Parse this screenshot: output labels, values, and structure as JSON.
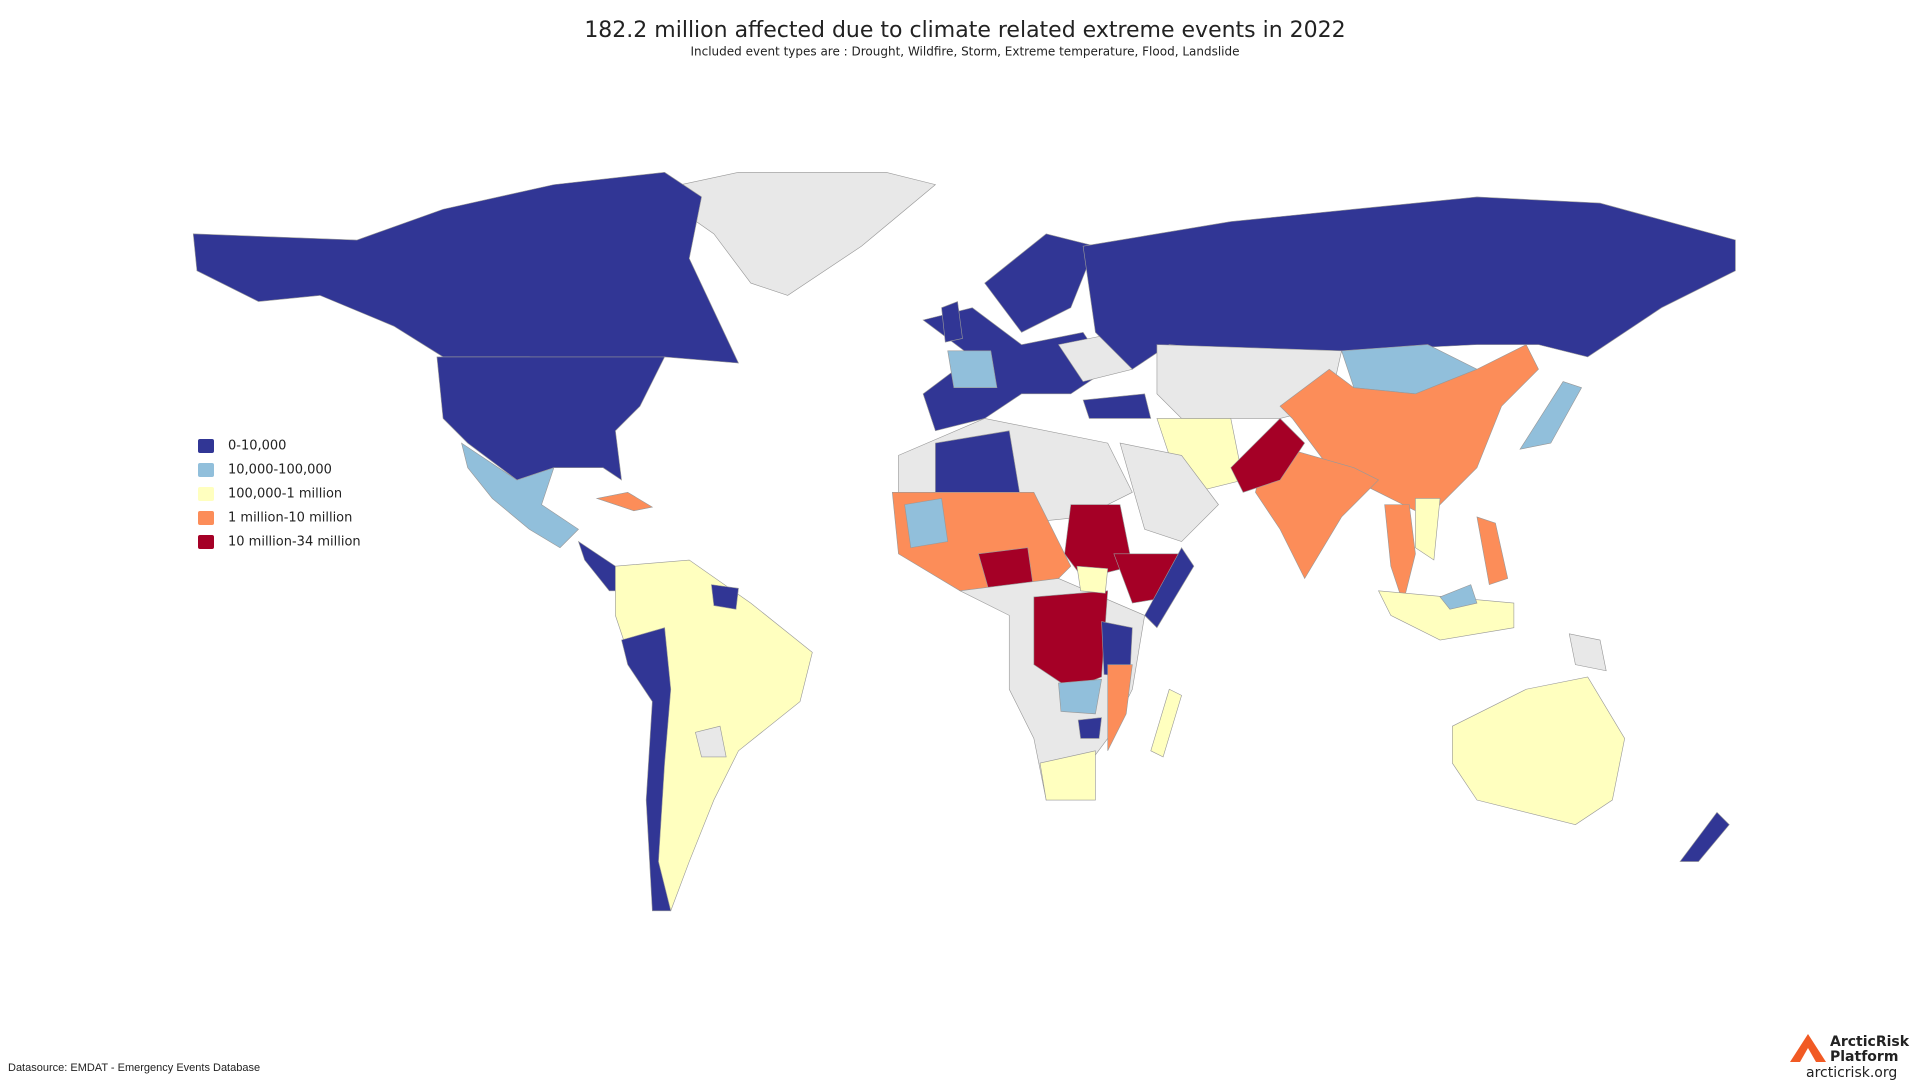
{
  "header": {
    "title": "182.2 million affected due to climate related extreme events in 2022",
    "subtitle": "Included event types are : Drought, Wildfire, Storm, Extreme temperature, Flood, Landslide"
  },
  "legend": {
    "items": [
      {
        "label": "0-10,000",
        "color": "#313695"
      },
      {
        "label": "10,000-100,000",
        "color": "#91bfdb"
      },
      {
        "label": "100,000-1 million",
        "color": "#ffffbf"
      },
      {
        "label": "1 million-10 million",
        "color": "#fc8d59"
      },
      {
        "label": "10 million-34 million",
        "color": "#a50026"
      }
    ],
    "no_data_color": "#e8e8e8"
  },
  "footer": {
    "source": "Datasource: EMDAT - Emergency Events Database",
    "logo": {
      "line1": "ArcticRisk",
      "line2": "Platform",
      "url": "arcticrisk.org"
    }
  }
}
